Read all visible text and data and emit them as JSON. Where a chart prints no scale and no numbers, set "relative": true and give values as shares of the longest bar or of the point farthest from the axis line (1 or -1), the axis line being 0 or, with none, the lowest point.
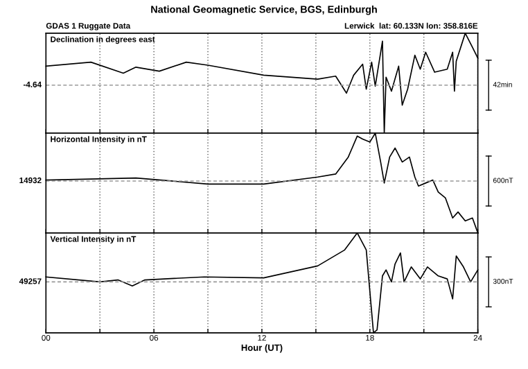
{
  "chart_data": [
    {
      "type": "line",
      "title": "National Geomagnetic Service, BGS, Edinburgh",
      "annotations": [
        "GDAS 1 Ruggate Data",
        "Lerwick  lat: 60.133N lon: 358.816E",
        "-4.64",
        "42min"
      ],
      "ylabel": "Declination in degrees east",
      "relative": true,
      "grid": "x",
      "tick_labels": false,
      "xlim": [
        0,
        24
      ],
      "xticks": [
        {
          "value": 0,
          "label": null
        },
        {
          "value": 3,
          "label": null
        },
        {
          "value": 6,
          "label": null
        },
        {
          "value": 9,
          "label": null
        },
        {
          "value": 12,
          "label": null
        },
        {
          "value": 15,
          "label": null
        },
        {
          "value": 18,
          "label": null
        },
        {
          "value": 21,
          "label": null
        },
        {
          "value": 24,
          "label": null
        }
      ],
      "ref_lines": [
        {
          "axis": "y",
          "value": 0.48,
          "color": "#999999",
          "line_style": "dashed"
        }
      ],
      "series": [
        {
          "color": "#000000",
          "x": [
            0.0,
            2.5,
            4.3,
            5.0,
            6.3,
            7.8,
            9.0,
            12.1,
            15.1,
            16.1,
            16.7,
            17.1,
            17.6,
            17.8,
            18.1,
            18.3,
            18.7,
            18.8,
            18.9,
            19.2,
            19.6,
            19.8,
            20.1,
            20.5,
            20.8,
            21.1,
            21.6,
            22.3,
            22.6,
            22.7,
            22.8,
            23.3,
            23.7,
            24.0
          ],
          "values": [
            0.67,
            0.71,
            0.6,
            0.66,
            0.62,
            0.71,
            0.68,
            0.58,
            0.54,
            0.57,
            0.4,
            0.58,
            0.69,
            0.44,
            0.71,
            0.47,
            0.92,
            0,
            0.56,
            0.42,
            0.67,
            0.28,
            0.44,
            0.78,
            0.64,
            0.81,
            0.61,
            0.64,
            0.81,
            0.42,
            0.72,
            1,
            0.86,
            0.75
          ]
        }
      ]
    },
    {
      "type": "line",
      "annotations": [
        "14932",
        "600nT"
      ],
      "ylabel": "Horizontal Intensity in nT",
      "relative": true,
      "grid": "x",
      "tick_labels": false,
      "xlim": [
        0,
        24
      ],
      "xticks": [
        {
          "value": 0,
          "label": null
        },
        {
          "value": 3,
          "label": null
        },
        {
          "value": 6,
          "label": null
        },
        {
          "value": 9,
          "label": null
        },
        {
          "value": 12,
          "label": null
        },
        {
          "value": 15,
          "label": null
        },
        {
          "value": 18,
          "label": null
        },
        {
          "value": 21,
          "label": null
        },
        {
          "value": 24,
          "label": null
        }
      ],
      "ref_lines": [
        {
          "axis": "y",
          "value": 0.52,
          "color": "#999999",
          "line_style": "dashed"
        }
      ],
      "series": [
        {
          "color": "#000000",
          "x": [
            0.0,
            5.0,
            9.0,
            12.1,
            15.1,
            16.1,
            16.8,
            17.3,
            17.6,
            18.0,
            18.3,
            18.6,
            18.8,
            19.1,
            19.4,
            19.8,
            20.2,
            20.5,
            20.7,
            21.1,
            21.5,
            21.8,
            22.2,
            22.6,
            22.9,
            23.3,
            23.7,
            24.0
          ],
          "values": [
            0.53,
            0.55,
            0.49,
            0.49,
            0.56,
            0.59,
            0.76,
            0.97,
            0.94,
            0.91,
            1,
            0.71,
            0.5,
            0.76,
            0.85,
            0.71,
            0.76,
            0.56,
            0.47,
            0.5,
            0.53,
            0.41,
            0.35,
            0.15,
            0.21,
            0.12,
            0.15,
            0
          ]
        }
      ]
    },
    {
      "type": "line",
      "annotations": [
        "49257",
        "300nT"
      ],
      "ylabel": "Vertical Intensity in nT",
      "xlabel": "Hour (UT)",
      "relative": true,
      "grid": "x",
      "tick_labels": "x",
      "xlim": [
        0,
        24
      ],
      "xticks": [
        {
          "value": 0,
          "label": "00"
        },
        {
          "value": 3,
          "label": null
        },
        {
          "value": 6,
          "label": "06"
        },
        {
          "value": 9,
          "label": null
        },
        {
          "value": 12,
          "label": "12"
        },
        {
          "value": 15,
          "label": null
        },
        {
          "value": 18,
          "label": "18"
        },
        {
          "value": 21,
          "label": null
        },
        {
          "value": 24,
          "label": "24"
        }
      ],
      "ref_lines": [
        {
          "axis": "y",
          "value": 0.51,
          "color": "#999999",
          "line_style": "dashed"
        }
      ],
      "series": [
        {
          "color": "#000000",
          "x": [
            0.0,
            3.0,
            4.0,
            4.8,
            5.5,
            8.8,
            12.1,
            15.1,
            16.6,
            17.3,
            17.8,
            18.2,
            18.4,
            18.7,
            18.9,
            19.2,
            19.4,
            19.7,
            19.9,
            20.3,
            20.8,
            21.2,
            21.8,
            22.3,
            22.6,
            22.8,
            23.2,
            23.6,
            24.0
          ],
          "values": [
            0.56,
            0.51,
            0.53,
            0.47,
            0.53,
            0.56,
            0.55,
            0.67,
            0.83,
            1,
            0.83,
            0,
            0.03,
            0.57,
            0.63,
            0.51,
            0.69,
            0.8,
            0.51,
            0.66,
            0.54,
            0.66,
            0.57,
            0.54,
            0.34,
            0.77,
            0.66,
            0.51,
            0.63
          ]
        }
      ]
    }
  ]
}
